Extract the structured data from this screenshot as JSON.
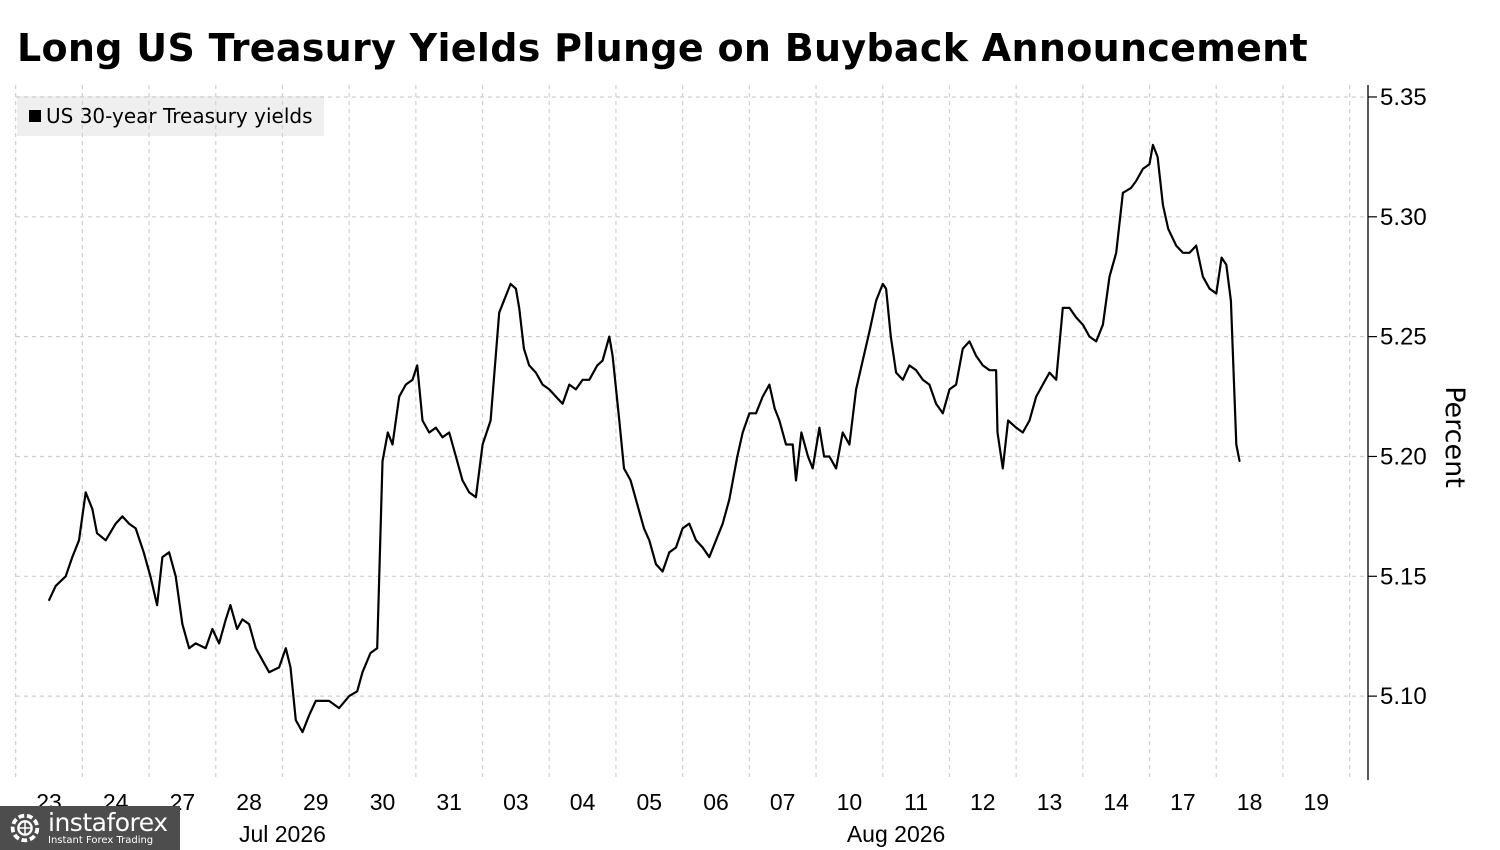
{
  "title": "Long US Treasury Yields Plunge on Buyback Announcement",
  "legend": {
    "label": "US 30-year Treasury yields",
    "swatch_color": "#000000"
  },
  "watermark": {
    "brand": "instaforex",
    "sub": "Instant Forex Trading",
    "icon": "gear-globe-icon"
  },
  "chart_data": {
    "type": "line",
    "title": "Long US Treasury Yields Plunge on Buyback Announcement",
    "ylabel": "Percent",
    "xlabel": "",
    "ylim": [
      5.065,
      5.355
    ],
    "yticks": [
      5.1,
      5.15,
      5.2,
      5.25,
      5.3,
      5.35
    ],
    "ytick_labels": [
      "5.10",
      "5.15",
      "5.20",
      "5.25",
      "5.30",
      "5.35"
    ],
    "grid": true,
    "legend_position": "top-left",
    "y_axis_side": "right",
    "days": [
      "23",
      "24",
      "27",
      "28",
      "29",
      "30",
      "31",
      "03",
      "04",
      "05",
      "06",
      "07",
      "10",
      "11",
      "12",
      "13",
      "14",
      "17",
      "18",
      "19"
    ],
    "month_labels": [
      {
        "label": "Jul 2026",
        "day_index": 3.5
      },
      {
        "label": "Aug 2026",
        "day_index": 12.7
      }
    ],
    "series": [
      {
        "name": "US 30-year Treasury yields",
        "color": "#000000",
        "points": [
          [
            0.0,
            5.14
          ],
          [
            0.1,
            5.146
          ],
          [
            0.25,
            5.15
          ],
          [
            0.35,
            5.158
          ],
          [
            0.45,
            5.165
          ],
          [
            0.55,
            5.185
          ],
          [
            0.65,
            5.178
          ],
          [
            0.72,
            5.168
          ],
          [
            0.85,
            5.165
          ],
          [
            1.0,
            5.172
          ],
          [
            1.1,
            5.175
          ],
          [
            1.2,
            5.172
          ],
          [
            1.3,
            5.17
          ],
          [
            1.42,
            5.16
          ],
          [
            1.52,
            5.15
          ],
          [
            1.62,
            5.138
          ],
          [
            1.7,
            5.158
          ],
          [
            1.8,
            5.16
          ],
          [
            1.9,
            5.15
          ],
          [
            2.0,
            5.13
          ],
          [
            2.1,
            5.12
          ],
          [
            2.2,
            5.122
          ],
          [
            2.35,
            5.12
          ],
          [
            2.45,
            5.128
          ],
          [
            2.55,
            5.122
          ],
          [
            2.65,
            5.132
          ],
          [
            2.72,
            5.138
          ],
          [
            2.82,
            5.128
          ],
          [
            2.9,
            5.132
          ],
          [
            3.0,
            5.13
          ],
          [
            3.1,
            5.12
          ],
          [
            3.2,
            5.115
          ],
          [
            3.3,
            5.11
          ],
          [
            3.45,
            5.112
          ],
          [
            3.55,
            5.12
          ],
          [
            3.62,
            5.112
          ],
          [
            3.7,
            5.09
          ],
          [
            3.8,
            5.085
          ],
          [
            3.9,
            5.092
          ],
          [
            4.0,
            5.098
          ],
          [
            4.2,
            5.098
          ],
          [
            4.35,
            5.095
          ],
          [
            4.5,
            5.1
          ],
          [
            4.62,
            5.102
          ],
          [
            4.7,
            5.11
          ],
          [
            4.82,
            5.118
          ],
          [
            4.92,
            5.12
          ],
          [
            5.0,
            5.198
          ],
          [
            5.08,
            5.21
          ],
          [
            5.15,
            5.205
          ],
          [
            5.25,
            5.225
          ],
          [
            5.35,
            5.23
          ],
          [
            5.45,
            5.232
          ],
          [
            5.52,
            5.238
          ],
          [
            5.6,
            5.215
          ],
          [
            5.7,
            5.21
          ],
          [
            5.8,
            5.212
          ],
          [
            5.9,
            5.208
          ],
          [
            6.0,
            5.21
          ],
          [
            6.1,
            5.2
          ],
          [
            6.2,
            5.19
          ],
          [
            6.3,
            5.185
          ],
          [
            6.4,
            5.183
          ],
          [
            6.5,
            5.205
          ],
          [
            6.62,
            5.215
          ],
          [
            6.75,
            5.26
          ],
          [
            6.82,
            5.265
          ],
          [
            6.92,
            5.272
          ],
          [
            7.0,
            5.27
          ],
          [
            7.05,
            5.262
          ],
          [
            7.12,
            5.245
          ],
          [
            7.2,
            5.238
          ],
          [
            7.3,
            5.235
          ],
          [
            7.4,
            5.23
          ],
          [
            7.5,
            5.228
          ],
          [
            7.6,
            5.225
          ],
          [
            7.7,
            5.222
          ],
          [
            7.8,
            5.23
          ],
          [
            7.9,
            5.228
          ],
          [
            8.0,
            5.232
          ],
          [
            8.1,
            5.232
          ],
          [
            8.22,
            5.238
          ],
          [
            8.3,
            5.24
          ],
          [
            8.4,
            5.25
          ],
          [
            8.45,
            5.242
          ],
          [
            8.55,
            5.215
          ],
          [
            8.62,
            5.195
          ],
          [
            8.72,
            5.19
          ],
          [
            8.82,
            5.18
          ],
          [
            8.92,
            5.17
          ],
          [
            9.0,
            5.165
          ],
          [
            9.1,
            5.155
          ],
          [
            9.2,
            5.152
          ],
          [
            9.3,
            5.16
          ],
          [
            9.4,
            5.162
          ],
          [
            9.5,
            5.17
          ],
          [
            9.6,
            5.172
          ],
          [
            9.7,
            5.165
          ],
          [
            9.8,
            5.162
          ],
          [
            9.9,
            5.158
          ],
          [
            10.0,
            5.165
          ],
          [
            10.1,
            5.172
          ],
          [
            10.2,
            5.182
          ],
          [
            10.32,
            5.2
          ],
          [
            10.4,
            5.21
          ],
          [
            10.5,
            5.218
          ],
          [
            10.6,
            5.218
          ],
          [
            10.7,
            5.225
          ],
          [
            10.8,
            5.23
          ],
          [
            10.88,
            5.22
          ],
          [
            10.95,
            5.215
          ],
          [
            11.05,
            5.205
          ],
          [
            11.15,
            5.205
          ],
          [
            11.2,
            5.19
          ],
          [
            11.28,
            5.21
          ],
          [
            11.38,
            5.2
          ],
          [
            11.45,
            5.195
          ],
          [
            11.55,
            5.212
          ],
          [
            11.62,
            5.2
          ],
          [
            11.7,
            5.2
          ],
          [
            11.8,
            5.195
          ],
          [
            11.9,
            5.21
          ],
          [
            12.0,
            5.205
          ],
          [
            12.1,
            5.228
          ],
          [
            12.2,
            5.24
          ],
          [
            12.3,
            5.252
          ],
          [
            12.4,
            5.265
          ],
          [
            12.5,
            5.272
          ],
          [
            12.55,
            5.27
          ],
          [
            12.62,
            5.25
          ],
          [
            12.7,
            5.235
          ],
          [
            12.8,
            5.232
          ],
          [
            12.9,
            5.238
          ],
          [
            13.0,
            5.236
          ],
          [
            13.1,
            5.232
          ],
          [
            13.2,
            5.23
          ],
          [
            13.3,
            5.222
          ],
          [
            13.4,
            5.218
          ],
          [
            13.5,
            5.228
          ],
          [
            13.6,
            5.23
          ],
          [
            13.7,
            5.245
          ],
          [
            13.8,
            5.248
          ],
          [
            13.9,
            5.242
          ],
          [
            14.0,
            5.238
          ],
          [
            14.1,
            5.236
          ],
          [
            14.2,
            5.236
          ],
          [
            14.22,
            5.21
          ],
          [
            14.3,
            5.195
          ],
          [
            14.38,
            5.215
          ],
          [
            14.5,
            5.212
          ],
          [
            14.6,
            5.21
          ],
          [
            14.7,
            5.215
          ],
          [
            14.8,
            5.225
          ],
          [
            14.9,
            5.23
          ],
          [
            15.0,
            5.235
          ],
          [
            15.1,
            5.232
          ],
          [
            15.2,
            5.262
          ],
          [
            15.3,
            5.262
          ],
          [
            15.4,
            5.258
          ],
          [
            15.5,
            5.255
          ],
          [
            15.6,
            5.25
          ],
          [
            15.7,
            5.248
          ],
          [
            15.8,
            5.255
          ],
          [
            15.9,
            5.275
          ],
          [
            16.0,
            5.285
          ],
          [
            16.1,
            5.31
          ],
          [
            16.22,
            5.312
          ],
          [
            16.3,
            5.315
          ],
          [
            16.4,
            5.32
          ],
          [
            16.5,
            5.322
          ],
          [
            16.55,
            5.33
          ],
          [
            16.62,
            5.325
          ],
          [
            16.7,
            5.305
          ],
          [
            16.78,
            5.295
          ],
          [
            16.9,
            5.288
          ],
          [
            17.0,
            5.285
          ],
          [
            17.1,
            5.285
          ],
          [
            17.2,
            5.288
          ],
          [
            17.3,
            5.275
          ],
          [
            17.4,
            5.27
          ],
          [
            17.5,
            5.268
          ],
          [
            17.58,
            5.283
          ],
          [
            17.65,
            5.28
          ],
          [
            17.72,
            5.265
          ],
          [
            17.8,
            5.205
          ],
          [
            17.85,
            5.198
          ]
        ]
      }
    ]
  }
}
